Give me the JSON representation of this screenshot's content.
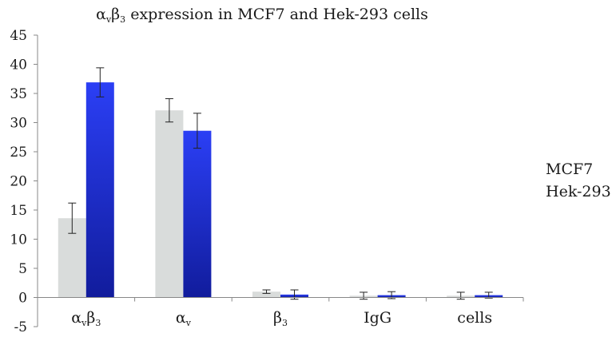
{
  "chart_data": {
    "type": "bar",
    "title": {
      "alpha": "α",
      "sub_v": "v",
      "beta": "β",
      "sub_3": "3",
      "rest": " expression in MCF7 and Hek-293 cells"
    },
    "categories": [
      {
        "main": "α",
        "sub": "v",
        "main2": "β",
        "sub2": "3"
      },
      {
        "main": "α",
        "sub": "v",
        "main2": "",
        "sub2": ""
      },
      {
        "main": "β",
        "sub": "3",
        "main2": "",
        "sub2": ""
      },
      {
        "main": "IgG",
        "sub": "",
        "main2": "",
        "sub2": ""
      },
      {
        "main": "cells",
        "sub": "",
        "main2": "",
        "sub2": ""
      }
    ],
    "series": [
      {
        "name": "MCF7",
        "color": "#d9dcdb",
        "values": [
          13.6,
          32.1,
          1.0,
          0.3,
          0.3
        ],
        "errors": [
          2.6,
          2.0,
          0.3,
          0.6,
          0.6
        ]
      },
      {
        "name": "Hek-293",
        "color": "#1e2ed8",
        "values": [
          36.9,
          28.6,
          0.5,
          0.4,
          0.4
        ],
        "errors": [
          2.5,
          3.0,
          0.8,
          0.6,
          0.5
        ]
      }
    ],
    "ylim": [
      -5,
      45
    ],
    "yticks": [
      -5,
      0,
      5,
      10,
      15,
      20,
      25,
      30,
      35,
      40,
      45
    ],
    "grid": false,
    "legend_position": "right"
  }
}
